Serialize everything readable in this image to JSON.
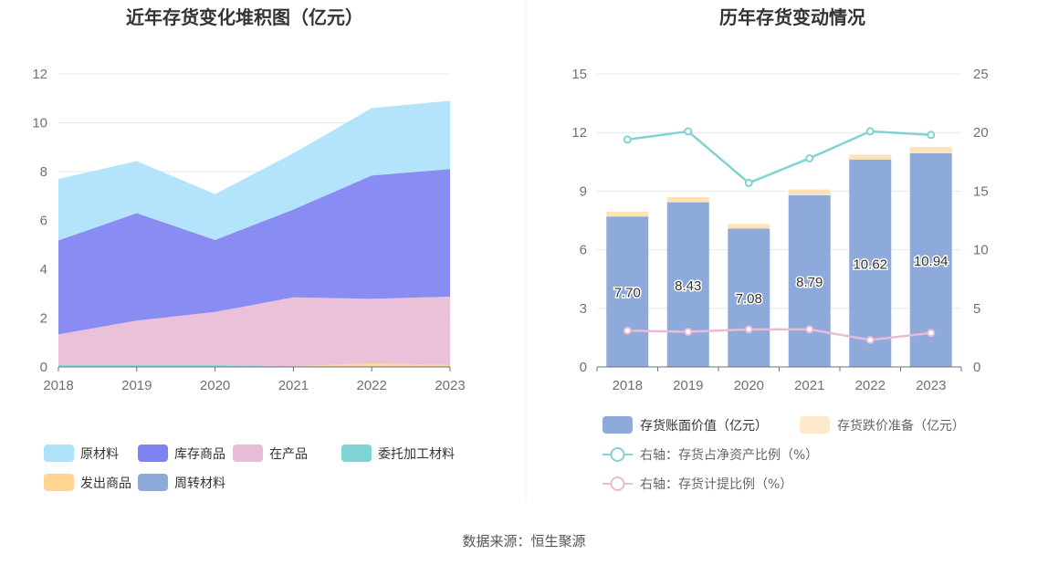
{
  "source_text": "数据来源：恒生聚源",
  "chart_data": [
    {
      "type": "area",
      "stacked": true,
      "title": "近年存货变化堆积图（亿元）",
      "categories": [
        "2018",
        "2019",
        "2020",
        "2021",
        "2022",
        "2023"
      ],
      "ylim": [
        0,
        12
      ],
      "yticks": [
        0,
        2,
        4,
        6,
        8,
        10,
        12
      ],
      "series": [
        {
          "name": "周转材料",
          "color": "#8eaadb",
          "values": [
            0.03,
            0.03,
            0.03,
            0.03,
            0.03,
            0.03
          ]
        },
        {
          "name": "发出商品",
          "color": "#ffd591",
          "values": [
            0.0,
            0.0,
            0.0,
            0.0,
            0.12,
            0.05
          ]
        },
        {
          "name": "委托加工材料",
          "color": "#7fd3d3",
          "values": [
            0.05,
            0.05,
            0.05,
            0.0,
            0.0,
            0.0
          ]
        },
        {
          "name": "在产品",
          "color": "#e8bcd6",
          "values": [
            1.25,
            1.82,
            2.17,
            2.82,
            2.64,
            2.8
          ]
        },
        {
          "name": "库存商品",
          "color": "#7f83f2",
          "values": [
            3.85,
            4.4,
            2.95,
            3.6,
            5.05,
            5.22
          ]
        },
        {
          "name": "原材料",
          "color": "#aee2fb",
          "values": [
            2.52,
            2.13,
            1.88,
            2.3,
            2.76,
            2.8
          ]
        }
      ],
      "legend": [
        "原材料",
        "库存商品",
        "在产品",
        "委托加工材料",
        "发出商品",
        "周转材料"
      ]
    },
    {
      "type": "bar+line",
      "title": "历年存货变动情况",
      "categories": [
        "2018",
        "2019",
        "2020",
        "2021",
        "2022",
        "2023"
      ],
      "ylim_left": [
        0,
        15
      ],
      "yticks_left": [
        0,
        3,
        6,
        9,
        12,
        15
      ],
      "ylim_right": [
        0,
        25
      ],
      "yticks_right": [
        0,
        5,
        10,
        15,
        20,
        25
      ],
      "bars": [
        {
          "name": "存货账面价值（亿元）",
          "color": "#8eaadb",
          "values": [
            7.7,
            8.43,
            7.08,
            8.79,
            10.62,
            10.94
          ],
          "labels": [
            "7.70",
            "8.43",
            "7.08",
            "8.79",
            "10.62",
            "10.94"
          ]
        },
        {
          "name": "存货跌价准备（亿元）",
          "color": "#ffe3b8",
          "legend_color": "#fde9cc",
          "values": [
            0.25,
            0.27,
            0.24,
            0.3,
            0.25,
            0.32
          ]
        }
      ],
      "lines": [
        {
          "name": "右轴：存货占净资产比例（%）",
          "color": "#7fd3d3",
          "axis": "right",
          "values": [
            19.4,
            20.1,
            15.7,
            17.8,
            20.1,
            19.8
          ]
        },
        {
          "name": "右轴：存货计提比例（%）",
          "color": "#e8bcd6",
          "axis": "right",
          "values": [
            3.1,
            3.0,
            3.2,
            3.2,
            2.3,
            2.9
          ]
        }
      ]
    }
  ]
}
